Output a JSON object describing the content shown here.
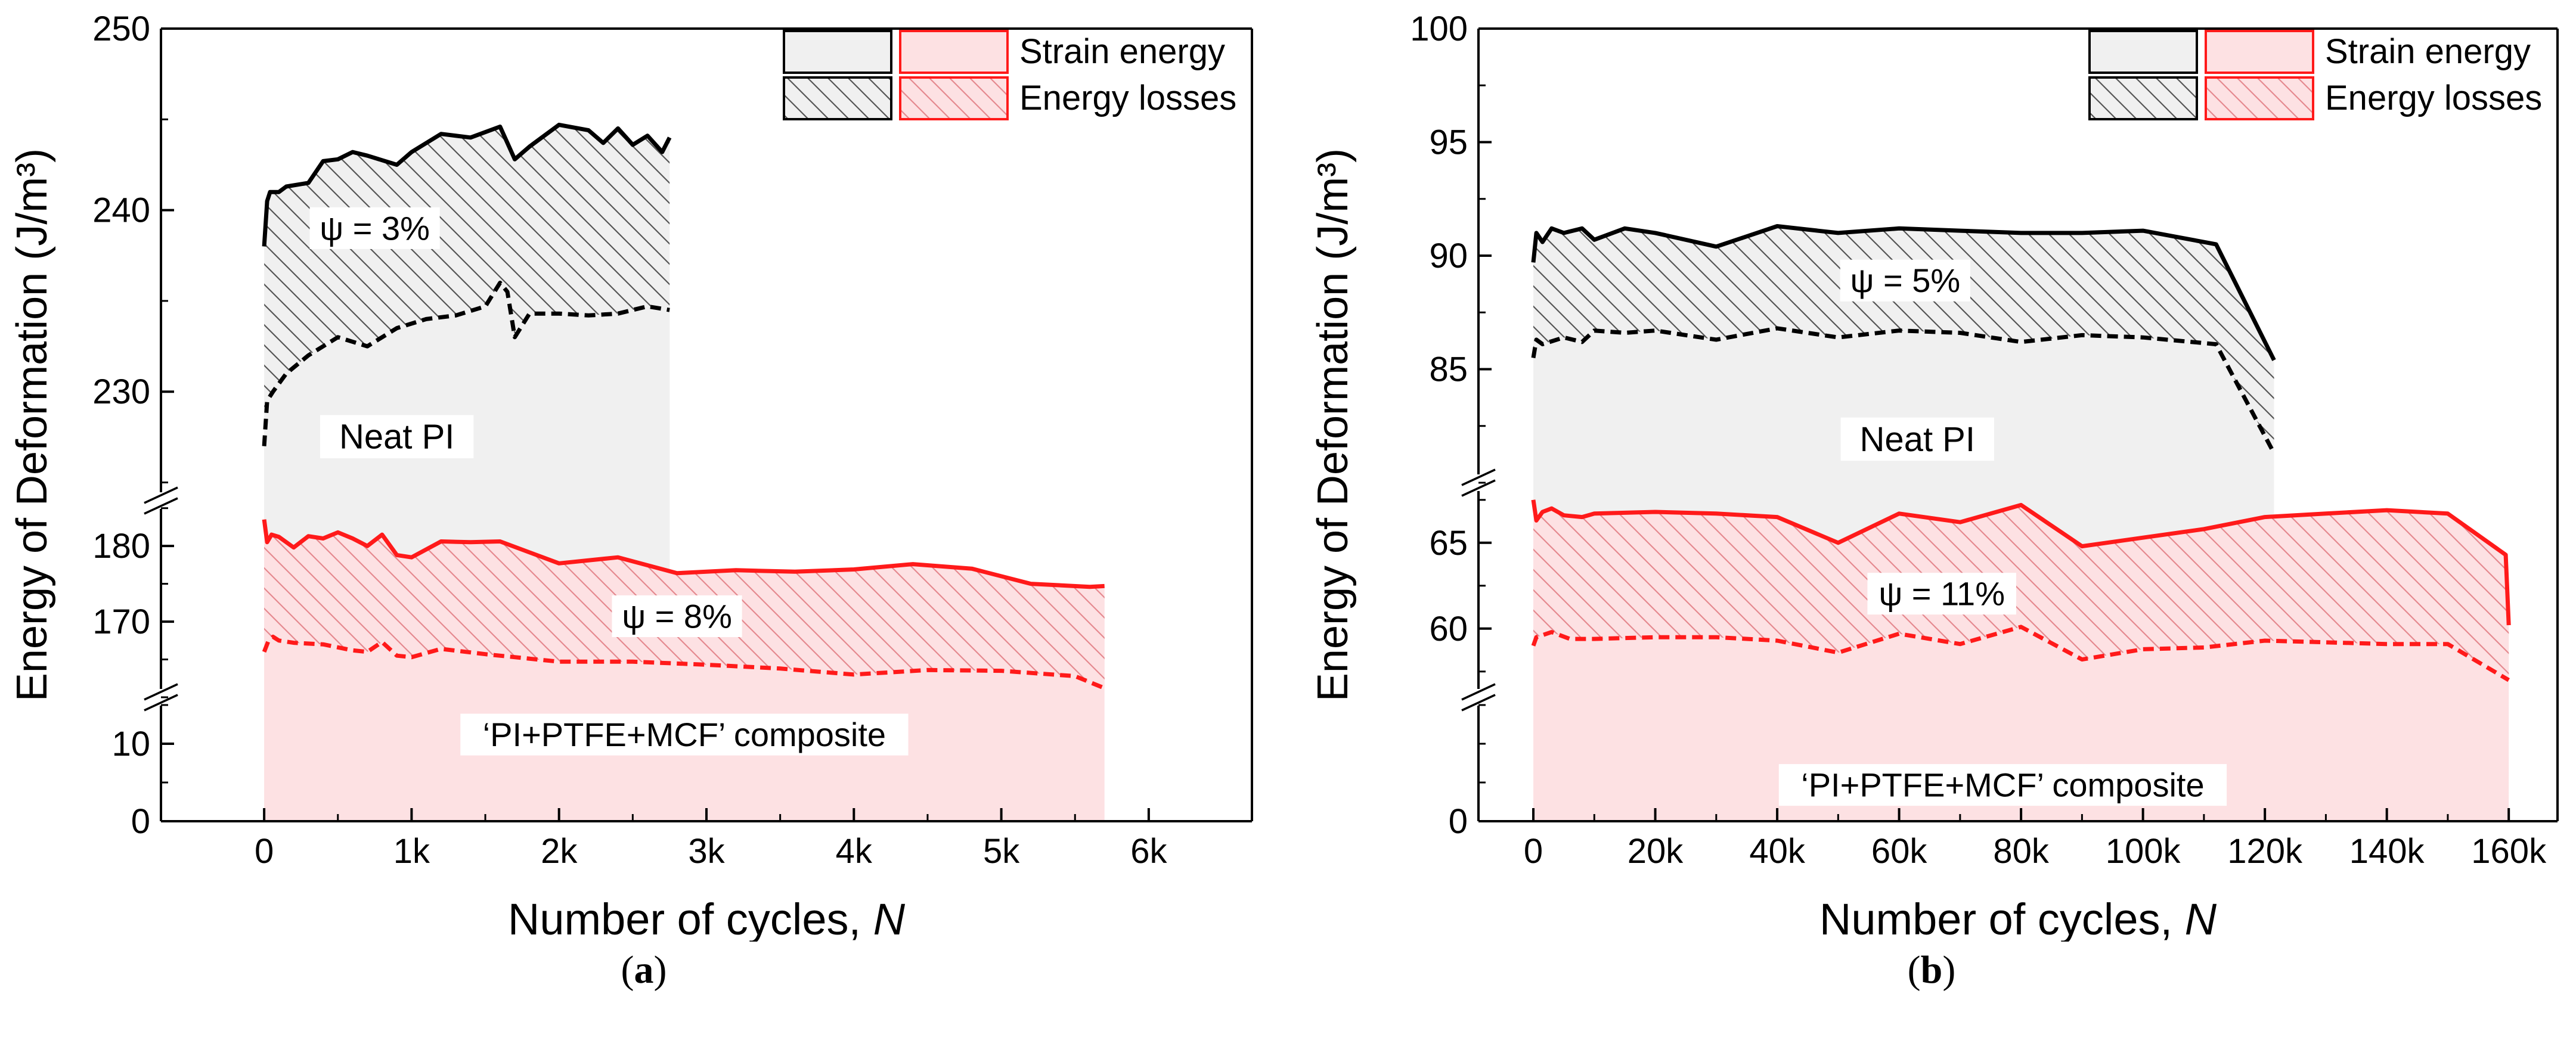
{
  "colors": {
    "neat": "#f0f0f0",
    "composite": "#fde1e3",
    "neat_line": "#000000",
    "composite_line": "#ff1a1a",
    "neat_hatch": "#555555",
    "composite_hatch": "#e5898f"
  },
  "captions": [
    {
      "open": "(",
      "letter": "a",
      "close": ")"
    },
    {
      "open": "(",
      "letter": "b",
      "close": ")"
    }
  ],
  "chart_data": [
    {
      "type": "area",
      "panel": "a",
      "ylabel": "Energy of Deformation (J/m³)",
      "xlabel": "Number of cycles, ",
      "xlabel_italic": "N",
      "x_ticks": [
        0,
        1000,
        2000,
        3000,
        4000,
        5000,
        6000
      ],
      "x_tick_labels": [
        "0",
        "1k",
        "2k",
        "3k",
        "4k",
        "5k",
        "6k"
      ],
      "xlim": [
        -700,
        6700
      ],
      "y_segments": [
        {
          "range": [
            0,
            16
          ],
          "ticks": [
            0,
            10
          ],
          "labels": [
            "0",
            "10"
          ]
        },
        {
          "range": [
            160,
            186
          ],
          "ticks": [
            170,
            180
          ],
          "labels": [
            "170",
            "180"
          ]
        },
        {
          "range": [
            224,
            250
          ],
          "ticks": [
            230,
            240,
            250
          ],
          "labels": [
            "230",
            "240",
            "250"
          ]
        }
      ],
      "legend": {
        "position": "top-right",
        "rows": [
          "Strain energy",
          "Energy losses"
        ]
      },
      "annotations": {
        "neat_psi": "ψ = 3%",
        "neat_label": "Neat PI",
        "comp_psi": "ψ = 8%",
        "comp_label": "‘PI+PTFE+MCF’ composite"
      },
      "annotation_pos": {
        "neat_psi": [
          750,
          238.5
        ],
        "neat_label": [
          900,
          227
        ],
        "comp_psi": [
          2800,
          169.5
        ],
        "comp_label": [
          2850,
          10
        ]
      },
      "series": [
        {
          "name": "Neat PI total energy",
          "style": "solid",
          "color": "neat_line",
          "x": [
            0,
            20,
            40,
            100,
            150,
            300,
            400,
            500,
            600,
            700,
            900,
            1000,
            1200,
            1400,
            1600,
            1700,
            1800,
            2000,
            2200,
            2300,
            2400,
            2500,
            2600,
            2700,
            2750
          ],
          "y": [
            238,
            240.5,
            241,
            241,
            241.3,
            241.5,
            242.7,
            242.8,
            243.2,
            243,
            242.5,
            243.2,
            244.2,
            244,
            244.6,
            242.8,
            243.5,
            244.7,
            244.4,
            243.7,
            244.5,
            243.6,
            244.1,
            243.2,
            244
          ]
        },
        {
          "name": "Neat PI strain energy",
          "style": "dashed",
          "color": "neat_line",
          "x": [
            0,
            20,
            60,
            150,
            300,
            500,
            700,
            900,
            1100,
            1300,
            1500,
            1600,
            1650,
            1700,
            1800,
            2000,
            2200,
            2400,
            2600,
            2750
          ],
          "y": [
            227,
            229.5,
            230,
            231,
            232,
            233,
            232.5,
            233.5,
            234,
            234.2,
            234.7,
            236,
            235.5,
            233,
            234.3,
            234.3,
            234.2,
            234.3,
            234.7,
            234.5
          ]
        },
        {
          "name": "Composite total energy",
          "style": "solid",
          "color": "composite_line",
          "x": [
            0,
            20,
            50,
            100,
            200,
            300,
            400,
            500,
            600,
            700,
            800,
            900,
            1000,
            1200,
            1400,
            1600,
            2000,
            2400,
            2800,
            3200,
            3600,
            4000,
            4400,
            4800,
            5200,
            5600,
            5700
          ],
          "y": [
            183.5,
            180.5,
            181.5,
            181.2,
            179.8,
            181.3,
            181,
            181.8,
            181,
            180,
            181.5,
            178.8,
            178.5,
            180.6,
            180.5,
            180.6,
            177.7,
            178.5,
            176.4,
            176.8,
            176.6,
            176.9,
            177.6,
            177,
            175,
            174.6,
            174.7
          ]
        },
        {
          "name": "Composite strain energy",
          "style": "dashed",
          "color": "composite_line",
          "x": [
            0,
            30,
            60,
            100,
            200,
            400,
            600,
            700,
            800,
            900,
            1000,
            1200,
            1500,
            2000,
            2500,
            3000,
            3500,
            4000,
            4500,
            5000,
            5500,
            5700
          ],
          "y": [
            166,
            167.5,
            168,
            167.5,
            167.2,
            167,
            166.2,
            166,
            167.3,
            165.5,
            165.3,
            166.4,
            165.7,
            164.7,
            164.7,
            164.3,
            163.8,
            163,
            163.6,
            163.5,
            162.8,
            161.2
          ]
        }
      ]
    },
    {
      "type": "area",
      "panel": "b",
      "ylabel": "Energy of Deformation (J/m³)",
      "xlabel": "Number of cycles, ",
      "xlabel_italic": "N",
      "x_ticks": [
        0,
        20000,
        40000,
        60000,
        80000,
        100000,
        120000,
        140000,
        160000
      ],
      "x_tick_labels": [
        "0",
        "20k",
        "40k",
        "60k",
        "80k",
        "100k",
        "120k",
        "140k",
        "160k"
      ],
      "xlim": [
        -9000,
        168000
      ],
      "y_segments": [
        {
          "range": [
            0,
            16
          ],
          "ticks": [
            0
          ],
          "labels": [
            "0"
          ]
        },
        {
          "range": [
            56,
            68.5
          ],
          "ticks": [
            60,
            65
          ],
          "labels": [
            "60",
            "65"
          ]
        },
        {
          "range": [
            80,
            100
          ],
          "ticks": [
            85,
            90,
            95,
            100
          ],
          "labels": [
            "85",
            "90",
            "95",
            "100"
          ]
        }
      ],
      "legend": {
        "position": "top-right",
        "rows": [
          "Strain energy",
          "Energy losses"
        ]
      },
      "annotations": {
        "neat_psi": "ψ = 5%",
        "neat_label": "Neat PI",
        "comp_psi": "ψ = 11%",
        "comp_label": "‘PI+PTFE+MCF’ composite"
      },
      "annotation_pos": {
        "neat_psi": [
          61000,
          88.5
        ],
        "neat_label": [
          63000,
          81.5
        ],
        "comp_psi": [
          67000,
          61.5
        ],
        "comp_label": [
          77000,
          3.5
        ]
      },
      "series": [
        {
          "name": "Neat PI total energy",
          "style": "solid",
          "color": "neat_line",
          "x": [
            0,
            500,
            1500,
            3000,
            5000,
            8000,
            10000,
            15000,
            20000,
            30000,
            40000,
            50000,
            60000,
            70000,
            80000,
            90000,
            100000,
            112000,
            121500
          ],
          "y": [
            89.7,
            91,
            90.6,
            91.2,
            91,
            91.2,
            90.7,
            91.2,
            91,
            90.4,
            91.3,
            91,
            91.2,
            91.1,
            91,
            91,
            91.1,
            90.5,
            85.4
          ]
        },
        {
          "name": "Neat PI strain energy",
          "style": "dashed",
          "color": "neat_line",
          "x": [
            0,
            500,
            1500,
            5000,
            8000,
            10000,
            15000,
            20000,
            30000,
            40000,
            50000,
            60000,
            70000,
            80000,
            90000,
            100000,
            112000,
            121500
          ],
          "y": [
            85.5,
            86.3,
            86.1,
            86.4,
            86.2,
            86.7,
            86.6,
            86.7,
            86.3,
            86.8,
            86.4,
            86.7,
            86.6,
            86.2,
            86.5,
            86.4,
            86.1,
            81.3
          ]
        },
        {
          "name": "Composite total energy",
          "style": "solid",
          "color": "composite_line",
          "x": [
            0,
            500,
            1500,
            3000,
            5000,
            8000,
            10000,
            20000,
            30000,
            40000,
            50000,
            60000,
            70000,
            80000,
            90000,
            100000,
            110000,
            120000,
            130000,
            140000,
            150000,
            159500,
            160000
          ],
          "y": [
            67.5,
            66.3,
            66.8,
            67,
            66.6,
            66.5,
            66.7,
            66.8,
            66.7,
            66.5,
            65,
            66.7,
            66.2,
            67.2,
            64.8,
            65.3,
            65.8,
            66.5,
            66.7,
            66.9,
            66.7,
            64.3,
            60.2
          ]
        },
        {
          "name": "Composite strain energy",
          "style": "dashed",
          "color": "composite_line",
          "x": [
            0,
            500,
            3000,
            6000,
            10000,
            20000,
            30000,
            40000,
            50000,
            60000,
            70000,
            80000,
            90000,
            100000,
            110000,
            120000,
            130000,
            140000,
            150000,
            160000
          ],
          "y": [
            59,
            59.5,
            59.8,
            59.4,
            59.4,
            59.5,
            59.5,
            59.3,
            58.6,
            59.7,
            59.1,
            60.1,
            58.2,
            58.8,
            58.9,
            59.3,
            59.2,
            59.1,
            59.1,
            57
          ]
        }
      ]
    }
  ]
}
